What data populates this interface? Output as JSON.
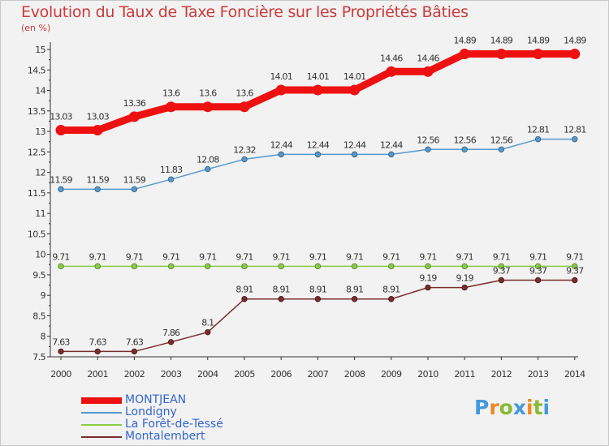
{
  "chart_data": {
    "type": "line",
    "title": "Evolution du Taux de Taxe Foncière sur les Propriétés Bâties",
    "subtitle": "(en %)",
    "x": [
      "2000",
      "2001",
      "2002",
      "2003",
      "2004",
      "2005",
      "2006",
      "2007",
      "2008",
      "2009",
      "2010",
      "2011",
      "2012",
      "2013",
      "2014"
    ],
    "ylim": [
      7.5,
      15
    ],
    "yticks": [
      7.5,
      8,
      8.5,
      9,
      9.5,
      10,
      10.5,
      11,
      11.5,
      12,
      12.5,
      13,
      13.5,
      14,
      14.5,
      15
    ],
    "ytick_labels": [
      "7.5",
      "8",
      "8.5",
      "9",
      "9.5",
      "10",
      "10.5",
      "11",
      "11.5",
      "12",
      "12.5",
      "13",
      "13.5",
      "14",
      "14.5",
      "15"
    ],
    "grid": false,
    "legend_position": "bottom-left",
    "series": [
      {
        "name": "MONTJEAN",
        "color": "#ee1111",
        "values": [
          13.03,
          13.03,
          13.36,
          13.6,
          13.6,
          13.6,
          14.01,
          14.01,
          14.01,
          14.46,
          14.46,
          14.89,
          14.89,
          14.89,
          14.89
        ],
        "labels": [
          "13.03",
          "13.03",
          "13.36",
          "13.6",
          "13.6",
          "13.6",
          "14.01",
          "14.01",
          "14.01",
          "14.46",
          "14.46",
          "14.89",
          "14.89",
          "14.89",
          "14.89"
        ]
      },
      {
        "name": "Londigny",
        "color": "#5599cc",
        "values": [
          11.59,
          11.59,
          11.59,
          11.83,
          12.08,
          12.32,
          12.44,
          12.44,
          12.44,
          12.44,
          12.56,
          12.56,
          12.56,
          12.81,
          12.81
        ],
        "labels": [
          "11.59",
          "11.59",
          "11.59",
          "11.83",
          "12.08",
          "12.32",
          "12.44",
          "12.44",
          "12.44",
          "12.44",
          "12.56",
          "12.56",
          "12.56",
          "12.81",
          "12.81"
        ]
      },
      {
        "name": "La Forêt-de-Tessé",
        "color": "#88cc44",
        "values": [
          9.71,
          9.71,
          9.71,
          9.71,
          9.71,
          9.71,
          9.71,
          9.71,
          9.71,
          9.71,
          9.71,
          9.71,
          9.71,
          9.71,
          9.71
        ],
        "labels": [
          "9.71",
          "9.71",
          "9.71",
          "9.71",
          "9.71",
          "9.71",
          "9.71",
          "9.71",
          "9.71",
          "9.71",
          "9.71",
          "9.71",
          "9.71",
          "9.71",
          "9.71"
        ]
      },
      {
        "name": "Montalembert",
        "color": "#7a2c2c",
        "values": [
          7.63,
          7.63,
          7.63,
          7.86,
          8.1,
          8.91,
          8.91,
          8.91,
          8.91,
          8.91,
          9.19,
          9.19,
          9.37,
          9.37,
          9.37
        ],
        "labels": [
          "7.63",
          "7.63",
          "7.63",
          "7.86",
          "8.1",
          "8.91",
          "8.91",
          "8.91",
          "8.91",
          "8.91",
          "9.19",
          "9.19",
          "9.37",
          "9.37",
          "9.37"
        ]
      }
    ]
  },
  "logo": {
    "text": "Proxiti",
    "letters": [
      "P",
      "r",
      "o",
      "x",
      "i",
      "t",
      "i"
    ],
    "colors": [
      "#4499dd",
      "#ee8822",
      "#88bb33",
      "#4499dd",
      "#ee8822",
      "#88bb33",
      "#4499dd"
    ]
  }
}
